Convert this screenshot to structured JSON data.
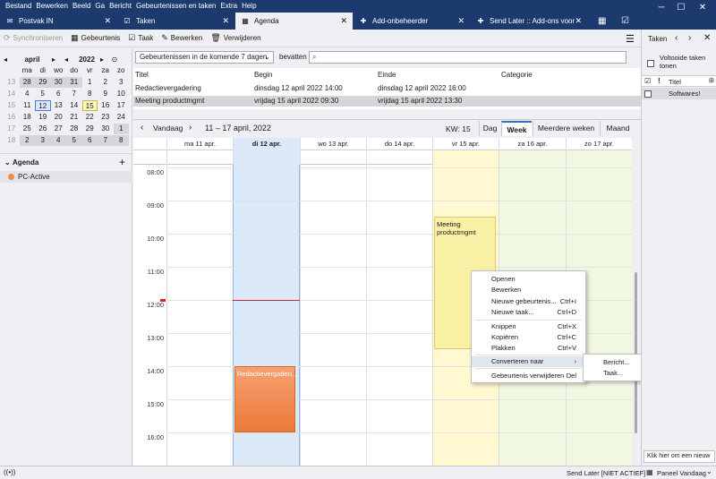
{
  "menubar": [
    "Bestand",
    "Bewerken",
    "Beeld",
    "Ga",
    "Bericht",
    "Gebeurtenissen en taken",
    "Extra",
    "Help"
  ],
  "tabs": [
    {
      "label": "Postvak IN",
      "icon": "inbox-icon",
      "glyph": "✉"
    },
    {
      "label": "Taken",
      "icon": "tasks-icon",
      "glyph": "☑"
    },
    {
      "label": "Agenda",
      "icon": "calendar-icon",
      "glyph": "▦"
    },
    {
      "label": "Add-onbeheerder",
      "icon": "puzzle-icon",
      "glyph": "✚"
    },
    {
      "label": "Send Later :: Add-ons voor",
      "icon": "puzzle-icon",
      "glyph": "✚"
    }
  ],
  "toolbar": {
    "sync": "Synchroniseren",
    "event": "Gebeurtenis",
    "task": "Taak",
    "edit": "Bewerken",
    "delete": "Verwijderen"
  },
  "minical": {
    "month": "april",
    "year": "2022",
    "weekdays": [
      "ma",
      "di",
      "wo",
      "do",
      "vr",
      "za",
      "zo"
    ],
    "weeks": [
      {
        "wk": "13",
        "days": [
          "28",
          "29",
          "30",
          "31",
          "1",
          "2",
          "3"
        ]
      },
      {
        "wk": "14",
        "days": [
          "4",
          "5",
          "6",
          "7",
          "8",
          "9",
          "10"
        ]
      },
      {
        "wk": "15",
        "days": [
          "11",
          "12",
          "13",
          "14",
          "15",
          "16",
          "17"
        ]
      },
      {
        "wk": "16",
        "days": [
          "18",
          "19",
          "20",
          "21",
          "22",
          "23",
          "24"
        ]
      },
      {
        "wk": "17",
        "days": [
          "25",
          "26",
          "27",
          "28",
          "29",
          "30",
          "1"
        ]
      },
      {
        "wk": "18",
        "days": [
          "2",
          "3",
          "4",
          "5",
          "6",
          "7",
          "8"
        ]
      }
    ]
  },
  "calendars": {
    "title": "Agenda",
    "items": [
      {
        "name": "PC-Active",
        "color": "#f08a4b"
      }
    ]
  },
  "search": {
    "filter": "Gebeurtenissen in de komende 7 dagen",
    "contains": "bevatten"
  },
  "eventlist": {
    "columns": [
      "Titel",
      "Begin",
      "Einde",
      "Categorie"
    ],
    "rows": [
      [
        "Redactievergadering",
        "dinsdag 12 april 2022 14:00",
        "dinsdag 12 april 2022 16:00",
        ""
      ],
      [
        "Meeting productmgmt",
        "vrijdag 15 april 2022 09:30",
        "vrijdag 15 april 2022 13:30",
        ""
      ]
    ]
  },
  "weekview": {
    "today": "Vandaag",
    "range": "11 – 17 april, 2022",
    "kw": "KW: 15",
    "views": [
      "Dag",
      "Week",
      "Meerdere weken",
      "Maand"
    ],
    "days": [
      "ma 11 apr.",
      "di 12 apr.",
      "wo 13 apr.",
      "do 14 apr.",
      "vr 15 apr.",
      "za 16 apr.",
      "zo 17 apr."
    ],
    "hours": [
      "08:00",
      "09:00",
      "10:00",
      "11:00",
      "12:00",
      "13:00",
      "14:00",
      "15:00",
      "16:00"
    ],
    "events": [
      {
        "title": "Meeting productmgmt",
        "color": "#fbf1a6"
      },
      {
        "title": "Redactievergaderi...",
        "color": "#f08a4b"
      }
    ]
  },
  "contextmenu": {
    "items": [
      {
        "label": "Openen",
        "shortcut": ""
      },
      {
        "label": "Bewerken",
        "shortcut": ""
      },
      {
        "label": "Nieuwe gebeurtenis...",
        "shortcut": "Ctrl+I"
      },
      {
        "label": "Nieuwe taak...",
        "shortcut": "Ctrl+D"
      },
      {
        "label": "Knippen",
        "shortcut": "Ctrl+X"
      },
      {
        "label": "Kopiëren",
        "shortcut": "Ctrl+C"
      },
      {
        "label": "Plakken",
        "shortcut": "Ctrl+V"
      },
      {
        "label": "Converteren naar",
        "shortcut": ""
      },
      {
        "label": "Gebeurtenis verwijderen",
        "shortcut": "Del"
      }
    ],
    "submenu": [
      "Bericht...",
      "Taak..."
    ]
  },
  "taskpane": {
    "title": "Taken",
    "show_completed": "Voltooide taken tonen",
    "col_title": "Titel",
    "items": [
      "Softwares!"
    ],
    "new_task": "Klik hier om een nieuw"
  },
  "statusbar": {
    "sendlater": "Send Later [NIET ACTIEF]",
    "today_pane": "Paneel Vandaag"
  }
}
